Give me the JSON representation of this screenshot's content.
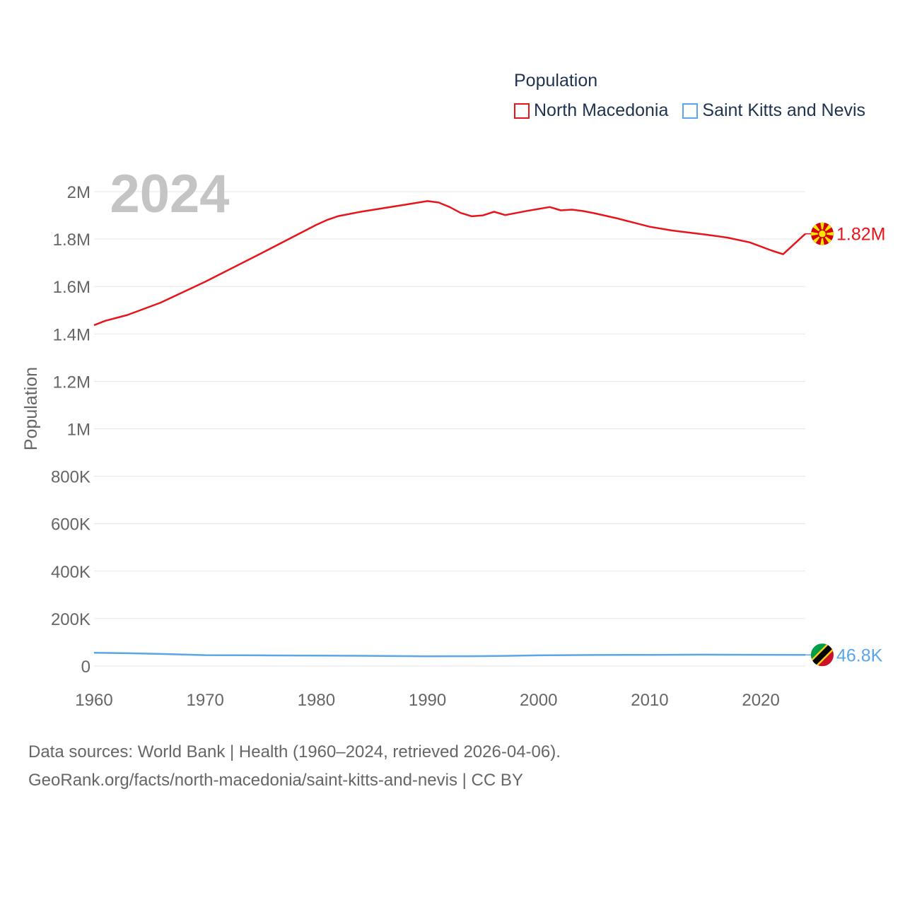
{
  "legend": {
    "title": "Population",
    "items": [
      {
        "label": "North Macedonia",
        "color": "#e8141c"
      },
      {
        "label": "Saint Kitts and Nevis",
        "color": "#5aa6e8"
      }
    ]
  },
  "footer": {
    "line1": "Data sources: World Bank | Health (1960–2024, retrieved 2026-04-06).",
    "line2": "GeoRank.org/facts/north-macedonia/saint-kitts-and-nevis | CC BY"
  },
  "chart_data": {
    "type": "line",
    "title": "Population",
    "year_label": "2024",
    "xlabel": "",
    "ylabel": "Population",
    "xlim": [
      1960,
      2024
    ],
    "ylim": [
      0,
      2000000
    ],
    "x_ticks": [
      1960,
      1970,
      1980,
      1990,
      2000,
      2010,
      2020
    ],
    "y_ticks": [
      0,
      200000,
      400000,
      600000,
      800000,
      1000000,
      1200000,
      1400000,
      1600000,
      1800000,
      2000000
    ],
    "y_tick_labels": [
      "0",
      "200K",
      "400K",
      "600K",
      "800K",
      "1M",
      "1.2M",
      "1.4M",
      "1.6M",
      "1.8M",
      "2M"
    ],
    "series": [
      {
        "name": "North Macedonia",
        "color": "#e8141c",
        "end_label": "1.82M",
        "points": [
          [
            1960,
            1437000
          ],
          [
            1961,
            1455000
          ],
          [
            1963,
            1480000
          ],
          [
            1966,
            1532000
          ],
          [
            1970,
            1620000
          ],
          [
            1975,
            1739000
          ],
          [
            1980,
            1860000
          ],
          [
            1981,
            1881000
          ],
          [
            1982,
            1897000
          ],
          [
            1984,
            1915000
          ],
          [
            1986,
            1930000
          ],
          [
            1988,
            1945000
          ],
          [
            1990,
            1960000
          ],
          [
            1991,
            1954000
          ],
          [
            1992,
            1935000
          ],
          [
            1993,
            1910000
          ],
          [
            1994,
            1896000
          ],
          [
            1995,
            1900000
          ],
          [
            1996,
            1915000
          ],
          [
            1997,
            1901000
          ],
          [
            1998,
            1910000
          ],
          [
            1999,
            1919000
          ],
          [
            2000,
            1927000
          ],
          [
            2001,
            1935000
          ],
          [
            2002,
            1921000
          ],
          [
            2003,
            1924000
          ],
          [
            2004,
            1918000
          ],
          [
            2005,
            1909000
          ],
          [
            2007,
            1888000
          ],
          [
            2010,
            1852000
          ],
          [
            2012,
            1836000
          ],
          [
            2015,
            1819000
          ],
          [
            2017,
            1806000
          ],
          [
            2019,
            1786000
          ],
          [
            2021,
            1751000
          ],
          [
            2022,
            1736000
          ],
          [
            2024,
            1822000
          ]
        ]
      },
      {
        "name": "Saint Kitts and Nevis",
        "color": "#5aa6e8",
        "end_label": "46.8K",
        "points": [
          [
            1960,
            56000
          ],
          [
            1963,
            54000
          ],
          [
            1966,
            51000
          ],
          [
            1970,
            46000
          ],
          [
            1975,
            45000
          ],
          [
            1980,
            44000
          ],
          [
            1985,
            43000
          ],
          [
            1990,
            41000
          ],
          [
            1994,
            41500
          ],
          [
            1997,
            43000
          ],
          [
            2000,
            45000
          ],
          [
            2005,
            46500
          ],
          [
            2010,
            47000
          ],
          [
            2015,
            48000
          ],
          [
            2020,
            47500
          ],
          [
            2024,
            46800
          ]
        ]
      }
    ],
    "source": "World Bank | Health"
  }
}
